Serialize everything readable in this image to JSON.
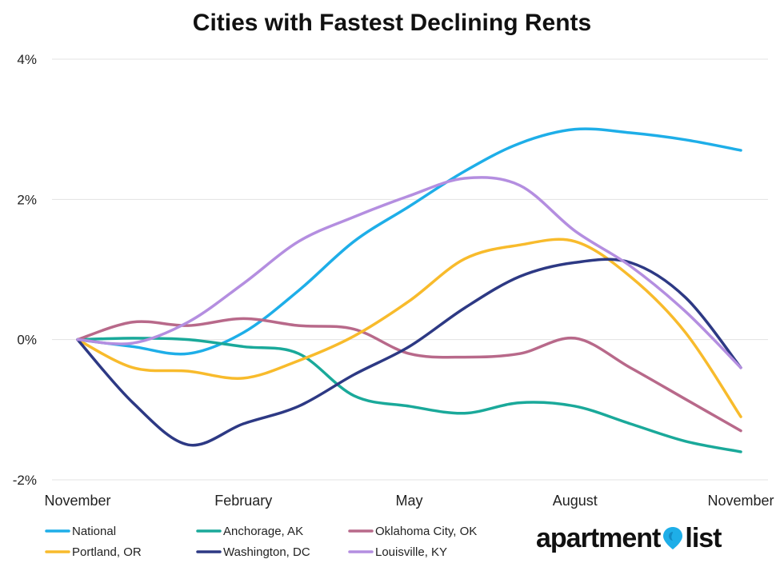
{
  "chart_data": {
    "type": "line",
    "title": "Cities with Fastest Declining Rents",
    "xlabel": "",
    "ylabel": "",
    "x_tick_labels": [
      "November",
      "February",
      "May",
      "August",
      "November"
    ],
    "y_tick_labels": [
      "4%",
      "2%",
      "0%",
      "-2%"
    ],
    "y_ticks": [
      4,
      2,
      0,
      -2
    ],
    "ylim": [
      -2,
      4
    ],
    "x": [
      0,
      1,
      2,
      3,
      4,
      5,
      6,
      7,
      8,
      9,
      10,
      11,
      12
    ],
    "legend_position": "bottom",
    "series": [
      {
        "name": "National",
        "color": "#1eaee8",
        "values": [
          0.0,
          -0.1,
          -0.2,
          0.1,
          0.7,
          1.4,
          1.9,
          2.4,
          2.8,
          3.0,
          2.95,
          2.85,
          2.7
        ]
      },
      {
        "name": "Anchorage, AK",
        "color": "#1aa99a",
        "values": [
          0.0,
          0.02,
          0.0,
          -0.1,
          -0.2,
          -0.8,
          -0.95,
          -1.05,
          -0.9,
          -0.95,
          -1.2,
          -1.45,
          -1.6
        ]
      },
      {
        "name": "Oklahoma City, OK",
        "color": "#b8698a",
        "values": [
          0.0,
          0.25,
          0.2,
          0.3,
          0.2,
          0.15,
          -0.2,
          -0.25,
          -0.2,
          0.02,
          -0.4,
          -0.85,
          -1.3
        ]
      },
      {
        "name": "Portland, OR",
        "color": "#f8bb2c",
        "values": [
          0.0,
          -0.4,
          -0.45,
          -0.55,
          -0.3,
          0.05,
          0.55,
          1.15,
          1.35,
          1.4,
          0.9,
          0.1,
          -1.1
        ]
      },
      {
        "name": "Washington, DC",
        "color": "#2d3984",
        "values": [
          0.0,
          -0.9,
          -1.5,
          -1.2,
          -0.95,
          -0.5,
          -0.1,
          0.45,
          0.9,
          1.1,
          1.1,
          0.6,
          -0.4
        ]
      },
      {
        "name": "Louisville, KY",
        "color": "#b48ee0",
        "values": [
          0.0,
          -0.05,
          0.25,
          0.8,
          1.4,
          1.75,
          2.05,
          2.3,
          2.2,
          1.55,
          1.05,
          0.4,
          -0.4
        ]
      }
    ]
  },
  "branding": {
    "logo_text_left": "apartment",
    "logo_text_right": "list",
    "pin_color": "#1eaee8"
  }
}
